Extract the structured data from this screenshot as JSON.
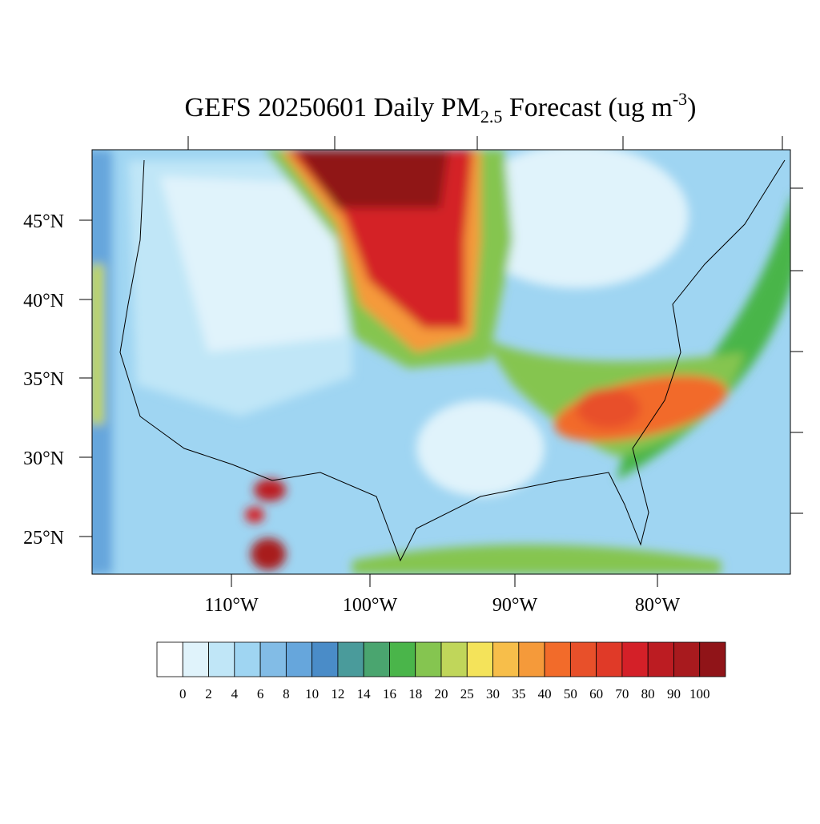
{
  "title": {
    "main": "GEFS 20250601 Daily PM",
    "sub": "2.5",
    "rest": " Forecast (ug m",
    "sup": "-3",
    "end": ")"
  },
  "map": {
    "lat_labels": [
      "45°N",
      "40°N",
      "35°N",
      "30°N",
      "25°N"
    ],
    "lon_labels": [
      "110°W",
      "100°W",
      "90°W",
      "80°W"
    ]
  },
  "colorbar": {
    "colors": [
      "#ffffff",
      "#e0f3fb",
      "#c0e6f7",
      "#9fd5f2",
      "#82bce6",
      "#66a6dc",
      "#4a8cc8",
      "#4a9b9b",
      "#4aa56f",
      "#4ab54a",
      "#85c550",
      "#c0d65a",
      "#f4e35a",
      "#f7be4a",
      "#f59a3a",
      "#f26b2a",
      "#e8502a",
      "#e03a28",
      "#d42028",
      "#bc1c22",
      "#a81a1e",
      "#901418"
    ],
    "labels": [
      0,
      2,
      4,
      6,
      8,
      10,
      12,
      14,
      16,
      18,
      20,
      25,
      30,
      35,
      40,
      50,
      60,
      70,
      80,
      90,
      100
    ]
  }
}
